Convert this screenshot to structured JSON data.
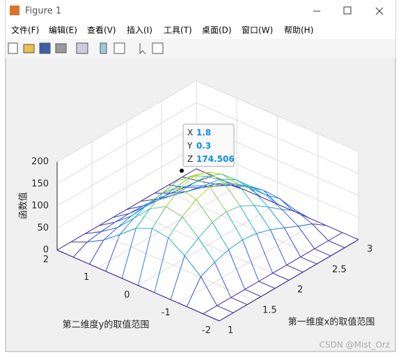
{
  "window": {
    "title": "Figure 1",
    "menu": [
      "文件(F)",
      "编辑(E)",
      "查看(V)",
      "插入(I)",
      "工具(T)",
      "桌面(D)",
      "窗口(W)",
      "帮助(H)"
    ]
  },
  "chart_data": {
    "type": "mesh",
    "colormap": "parula",
    "x": [
      1,
      1.2,
      1.4,
      1.6,
      1.8,
      2,
      2.2,
      2.4,
      2.6,
      2.8,
      3
    ],
    "y": [
      -2,
      -1.6,
      -1.2,
      -0.8,
      -0.4,
      0,
      0.4,
      0.8,
      1.2,
      1.6,
      2
    ],
    "z": [
      [
        0,
        0,
        0,
        0,
        0,
        0,
        0,
        0,
        0,
        0,
        0
      ],
      [
        0,
        0,
        0,
        0,
        0,
        0,
        0,
        0,
        0,
        0,
        0
      ],
      [
        0,
        50,
        64,
        74,
        78,
        74,
        64,
        50,
        35,
        22,
        0
      ],
      [
        0,
        81,
        103,
        120,
        126,
        120,
        103,
        81,
        57,
        36,
        0
      ],
      [
        0,
        106,
        135,
        156,
        165,
        156,
        135,
        106,
        74,
        47,
        0
      ],
      [
        0,
        111,
        142,
        165,
        174,
        165,
        142,
        111,
        78,
        50,
        0
      ],
      [
        0,
        95,
        121,
        140,
        148,
        140,
        121,
        95,
        67,
        42,
        0
      ],
      [
        0,
        65,
        83,
        97,
        102,
        97,
        83,
        65,
        46,
        29,
        0
      ],
      [
        0,
        36,
        46,
        54,
        57,
        54,
        46,
        36,
        26,
        16,
        0
      ],
      [
        0,
        16,
        21,
        24,
        25,
        24,
        21,
        16,
        11,
        7,
        0
      ],
      [
        0,
        0,
        0,
        0,
        0,
        0,
        0,
        0,
        0,
        0,
        0
      ]
    ],
    "xlim": [
      1,
      3
    ],
    "ylim": [
      -2,
      2
    ],
    "zlim": [
      0,
      200
    ],
    "xticks": [
      1,
      1.5,
      2,
      2.5,
      3
    ],
    "yticks": [
      -2,
      -1,
      0,
      1,
      2
    ],
    "zticks": [
      0,
      50,
      100,
      150,
      200
    ],
    "xlabel": "第一维度x的取值范围",
    "ylabel": "第二维度y的取值范围",
    "zlabel": "函数值",
    "grid": true,
    "datatip": {
      "labels": [
        "X",
        "Y",
        "Z"
      ],
      "x": 1.8,
      "y": 0.3,
      "z": 174.506
    }
  },
  "watermark": "CSDN @Mist_Orz"
}
